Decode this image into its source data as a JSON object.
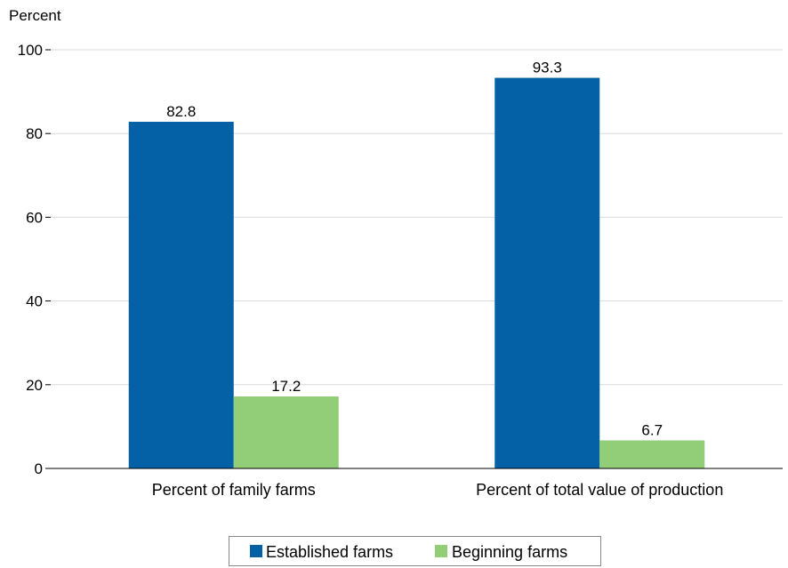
{
  "chart_data": {
    "type": "bar",
    "title": "",
    "xlabel": "",
    "ylabel": "Percent",
    "ylim": [
      0,
      100
    ],
    "yticks": [
      0,
      20,
      40,
      60,
      80,
      100
    ],
    "grid": true,
    "legend_position": "bottom",
    "categories": [
      "Percent of family farms",
      "Percent of total value of production"
    ],
    "series": [
      {
        "name": "Established farms",
        "color": "#0561a6",
        "values": [
          82.8,
          93.3
        ],
        "labels": [
          "82.8",
          "93.3"
        ]
      },
      {
        "name": "Beginning farms",
        "color": "#92cd78",
        "values": [
          17.2,
          6.7
        ],
        "labels": [
          "17.2",
          "6.7"
        ]
      }
    ]
  }
}
